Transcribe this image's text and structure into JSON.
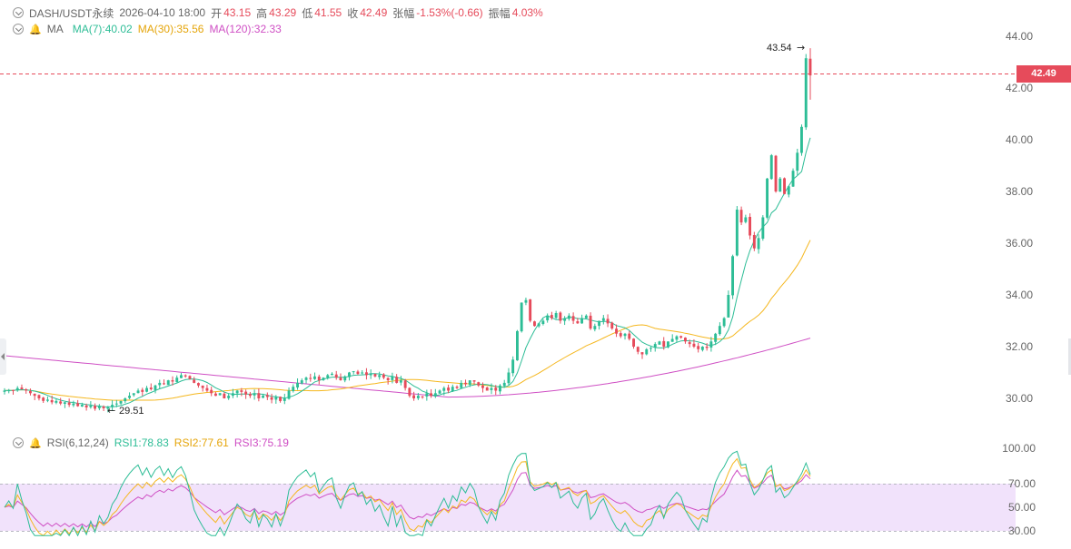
{
  "header": {
    "symbol": "DASH/USDT永续",
    "datetime": "2026-04-10 18:00",
    "open_label": "开",
    "open": "43.15",
    "high_label": "高",
    "high": "43.29",
    "low_label": "低",
    "low": "41.55",
    "close_label": "收",
    "close": "42.49",
    "change_label": "张幅",
    "change": "-1.53%(-0.66)",
    "amplitude_label": "振幅",
    "amplitude": "4.03%"
  },
  "ma_legend": {
    "name": "MA",
    "ma7": "MA(7):40.02",
    "ma30": "MA(30):35.56",
    "ma120": "MA(120):32.33"
  },
  "rsi_legend": {
    "name": "RSI(6,12,24)",
    "rsi1": "RSI1:78.83",
    "rsi2": "RSI2:77.61",
    "rsi3": "RSI3:75.19"
  },
  "current_price": "42.49",
  "colors": {
    "up": "#2dbd96",
    "down": "#e64b5b",
    "ma7": "#2dbd96",
    "ma30": "#f5b71e",
    "ma120": "#cf4fc4",
    "rsi_band": "#f1e2fb"
  },
  "chart_data": [
    {
      "type": "candlestick",
      "title": "DASH/USDT永续",
      "ylim": [
        29.0,
        44.6
      ],
      "y_ticks": [
        "44.00",
        "42.00",
        "40.00",
        "38.00",
        "36.00",
        "34.00",
        "32.00",
        "30.00"
      ],
      "y_tick_values": [
        44,
        42,
        40,
        38,
        36,
        34,
        32,
        30
      ],
      "max_label": "43.54",
      "min_label": "29.51",
      "max_value": 43.54,
      "min_value": 29.51,
      "closes": [
        30.3,
        30.32,
        30.3,
        30.4,
        30.35,
        30.3,
        30.2,
        30.1,
        30.0,
        29.9,
        29.95,
        29.85,
        29.9,
        29.8,
        29.85,
        29.75,
        29.8,
        29.7,
        29.75,
        29.65,
        29.72,
        29.6,
        29.7,
        29.62,
        29.66,
        29.75,
        29.8,
        29.9,
        30.0,
        30.1,
        30.2,
        30.3,
        30.25,
        30.4,
        30.35,
        30.5,
        30.6,
        30.55,
        30.7,
        30.65,
        30.8,
        30.9,
        30.85,
        30.75,
        30.6,
        30.5,
        30.4,
        30.3,
        30.2,
        30.1,
        30.2,
        30.0,
        30.1,
        30.2,
        30.3,
        30.25,
        30.15,
        30.1,
        30.2,
        30.0,
        30.1,
        30.05,
        29.95,
        30.05,
        29.9,
        30.0,
        30.3,
        30.45,
        30.6,
        30.7,
        30.8,
        30.75,
        30.85,
        30.7,
        30.8,
        30.9,
        30.95,
        30.8,
        30.7,
        30.85,
        31.0,
        31.05,
        30.95,
        31.0,
        30.9,
        30.95,
        30.85,
        30.9,
        30.8,
        30.7,
        30.85,
        30.6,
        30.7,
        30.4,
        30.1,
        30.0,
        30.1,
        30.05,
        30.2,
        30.1,
        30.2,
        30.3,
        30.4,
        30.3,
        30.45,
        30.4,
        30.6,
        30.55,
        30.7,
        30.65,
        30.5,
        30.4,
        30.3,
        30.4,
        30.3,
        30.5,
        30.6,
        31.0,
        31.5,
        32.6,
        33.7,
        33.8,
        33.0,
        32.8,
        32.9,
        33.0,
        33.2,
        33.1,
        33.3,
        33.0,
        33.1,
        33.2,
        33.0,
        32.9,
        33.1,
        33.2,
        32.7,
        32.8,
        33.0,
        33.1,
        32.9,
        32.7,
        32.5,
        32.4,
        32.5,
        32.3,
        32.0,
        31.8,
        31.7,
        31.9,
        31.95,
        32.1,
        32.2,
        32.0,
        32.2,
        32.3,
        32.4,
        32.35,
        32.2,
        32.1,
        32.0,
        31.9,
        32.0,
        31.95,
        32.2,
        32.5,
        32.8,
        33.1,
        34.0,
        35.5,
        37.3,
        36.8,
        37.0,
        36.3,
        35.8,
        36.2,
        37.0,
        38.5,
        39.4,
        38.0,
        38.5,
        37.9,
        38.2,
        38.8,
        39.5,
        40.5,
        43.15,
        42.49
      ]
    },
    {
      "type": "line",
      "title": "RSI(6,12,24)",
      "ylim": [
        28,
        104
      ],
      "y_ticks": [
        "100.00",
        "70.00",
        "50.00",
        "30.00"
      ],
      "y_tick_values": [
        100,
        70,
        50,
        30
      ],
      "band": [
        30,
        70
      ],
      "series": [
        {
          "name": "RSI1",
          "last": 78.83
        },
        {
          "name": "RSI2",
          "last": 77.61
        },
        {
          "name": "RSI3",
          "last": 75.19
        }
      ]
    }
  ]
}
